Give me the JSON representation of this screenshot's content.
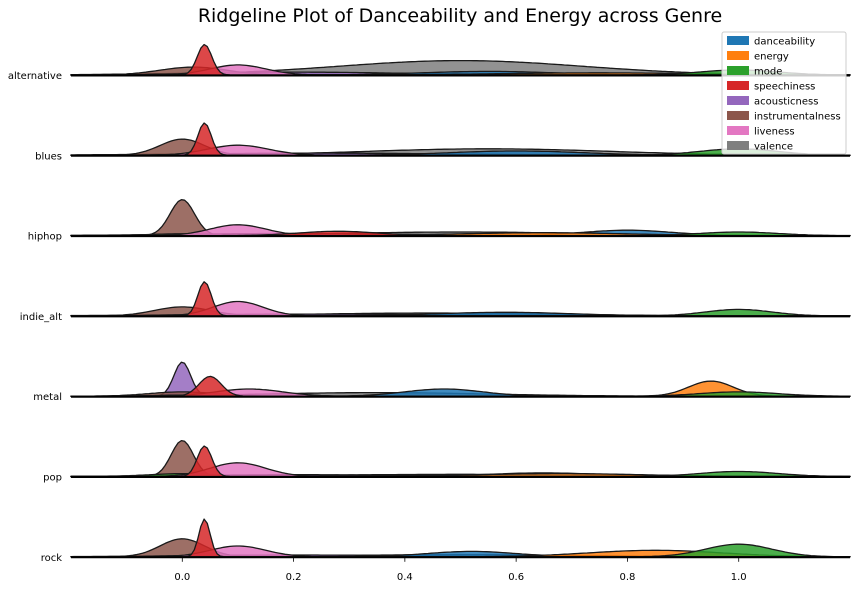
{
  "chart_data": {
    "type": "ridgeline",
    "title": "Ridgeline Plot of Danceability and Energy across Genre",
    "xlim": [
      -0.2,
      1.2
    ],
    "xticks": [
      "0.0",
      "0.2",
      "0.4",
      "0.6",
      "0.8",
      "1.0"
    ],
    "xtick_values": [
      0.0,
      0.2,
      0.4,
      0.6,
      0.8,
      1.0
    ],
    "legend_position": "top-right",
    "series": [
      {
        "name": "danceability",
        "color": "#1f77b4"
      },
      {
        "name": "energy",
        "color": "#ff7f0e"
      },
      {
        "name": "mode",
        "color": "#2ca02c"
      },
      {
        "name": "speechiness",
        "color": "#d62728"
      },
      {
        "name": "acousticness",
        "color": "#9467bd"
      },
      {
        "name": "instrumentalness",
        "color": "#8c564b"
      },
      {
        "name": "liveness",
        "color": "#e377c2"
      },
      {
        "name": "valence",
        "color": "#7f7f7f"
      }
    ],
    "rows": [
      {
        "label": "alternative",
        "densities": {
          "valence": [
            [
              0.5,
              0.22,
              0.4
            ]
          ],
          "instrumentalness": [
            [
              0.02,
              0.06,
              0.22
            ]
          ],
          "acousticness": [
            [
              0.2,
              0.2,
              0.08
            ]
          ],
          "danceability": [
            [
              0.55,
              0.12,
              0.1
            ]
          ],
          "energy": [
            [
              0.75,
              0.18,
              0.06
            ]
          ],
          "mode": [
            [
              1.0,
              0.07,
              0.14
            ],
            [
              0.0,
              0.06,
              0.03
            ]
          ],
          "liveness": [
            [
              0.1,
              0.05,
              0.28
            ]
          ],
          "speechiness": [
            [
              0.04,
              0.013,
              0.85
            ]
          ]
        }
      },
      {
        "label": "blues",
        "densities": {
          "valence": [
            [
              0.55,
              0.22,
              0.18
            ]
          ],
          "acousticness": [
            [
              0.25,
              0.25,
              0.06
            ]
          ],
          "instrumentalness": [
            [
              0.0,
              0.04,
              0.45
            ]
          ],
          "danceability": [
            [
              0.6,
              0.12,
              0.12
            ]
          ],
          "mode": [
            [
              1.0,
              0.07,
              0.18
            ],
            [
              0.0,
              0.06,
              0.02
            ]
          ],
          "liveness": [
            [
              0.1,
              0.055,
              0.28
            ]
          ],
          "speechiness": [
            [
              0.04,
              0.012,
              0.9
            ]
          ]
        }
      },
      {
        "label": "hiphop",
        "densities": {
          "valence": [
            [
              0.5,
              0.22,
              0.1
            ]
          ],
          "acousticness": [
            [
              0.2,
              0.2,
              0.06
            ]
          ],
          "danceability": [
            [
              0.8,
              0.08,
              0.15
            ]
          ],
          "energy": [
            [
              0.65,
              0.15,
              0.08
            ]
          ],
          "mode": [
            [
              1.0,
              0.07,
              0.1
            ],
            [
              0.0,
              0.06,
              0.05
            ]
          ],
          "speechiness": [
            [
              0.28,
              0.07,
              0.12
            ]
          ],
          "liveness": [
            [
              0.1,
              0.05,
              0.3
            ]
          ],
          "instrumentalness": [
            [
              0.0,
              0.022,
              1.0
            ]
          ]
        }
      },
      {
        "label": "indie_alt",
        "densities": {
          "valence": [
            [
              0.45,
              0.22,
              0.08
            ]
          ],
          "acousticness": [
            [
              0.25,
              0.25,
              0.05
            ]
          ],
          "instrumentalness": [
            [
              0.0,
              0.05,
              0.25
            ]
          ],
          "danceability": [
            [
              0.58,
              0.12,
              0.1
            ]
          ],
          "mode": [
            [
              1.0,
              0.06,
              0.18
            ],
            [
              0.0,
              0.06,
              0.03
            ]
          ],
          "liveness": [
            [
              0.1,
              0.045,
              0.4
            ]
          ],
          "speechiness": [
            [
              0.04,
              0.012,
              0.95
            ]
          ]
        }
      },
      {
        "label": "metal",
        "densities": {
          "valence": [
            [
              0.35,
              0.2,
              0.1
            ]
          ],
          "instrumentalness": [
            [
              0.0,
              0.06,
              0.12
            ]
          ],
          "danceability": [
            [
              0.47,
              0.07,
              0.2
            ]
          ],
          "energy": [
            [
              0.95,
              0.04,
              0.42
            ]
          ],
          "mode": [
            [
              1.0,
              0.07,
              0.12
            ],
            [
              0.0,
              0.06,
              0.03
            ]
          ],
          "liveness": [
            [
              0.12,
              0.06,
              0.2
            ]
          ],
          "speechiness": [
            [
              0.05,
              0.02,
              0.55
            ]
          ],
          "acousticness": [
            [
              0.0,
              0.015,
              0.95
            ]
          ]
        }
      },
      {
        "label": "pop",
        "densities": {
          "valence": [
            [
              0.5,
              0.25,
              0.06
            ]
          ],
          "acousticness": [
            [
              0.2,
              0.2,
              0.05
            ]
          ],
          "danceability": [
            [
              0.65,
              0.1,
              0.1
            ]
          ],
          "energy": [
            [
              0.68,
              0.15,
              0.08
            ]
          ],
          "mode": [
            [
              1.0,
              0.07,
              0.14
            ],
            [
              0.0,
              0.06,
              0.08
            ]
          ],
          "liveness": [
            [
              0.1,
              0.05,
              0.38
            ]
          ],
          "speechiness": [
            [
              0.04,
              0.013,
              0.85
            ]
          ],
          "instrumentalness": [
            [
              0.0,
              0.02,
              1.0
            ]
          ]
        }
      },
      {
        "label": "rock",
        "densities": {
          "valence": [
            [
              0.5,
              0.22,
              0.06
            ]
          ],
          "acousticness": [
            [
              0.2,
              0.2,
              0.05
            ]
          ],
          "danceability": [
            [
              0.52,
              0.08,
              0.15
            ]
          ],
          "energy": [
            [
              0.85,
              0.12,
              0.18
            ]
          ],
          "mode": [
            [
              1.0,
              0.06,
              0.35
            ],
            [
              0.0,
              0.06,
              0.03
            ]
          ],
          "instrumentalness": [
            [
              0.0,
              0.04,
              0.5
            ]
          ],
          "liveness": [
            [
              0.1,
              0.05,
              0.3
            ]
          ],
          "speechiness": [
            [
              0.04,
              0.01,
              1.05
            ]
          ]
        }
      }
    ]
  }
}
